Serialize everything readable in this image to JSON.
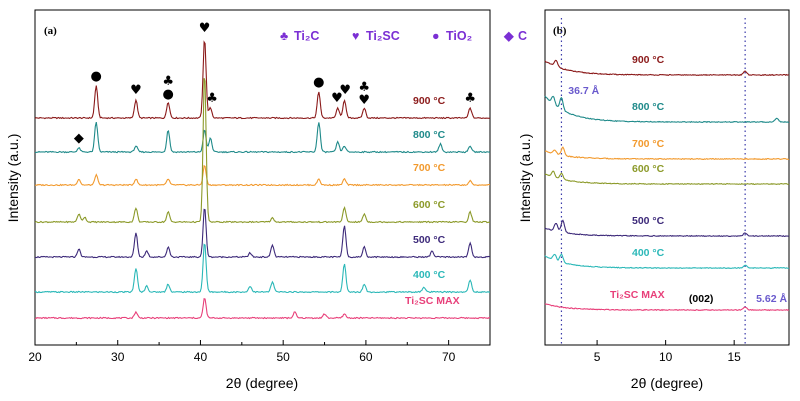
{
  "colors": {
    "900": "#8B1A1A",
    "800": "#1F8A8A",
    "700": "#F29A2E",
    "600": "#8C9A2A",
    "500": "#3D2A7A",
    "400": "#2BB8B8",
    "max": "#E8407A",
    "legend": "#7B2FD4",
    "annotation_b": "#6A5ACD",
    "dotted": "#3A3AAA"
  },
  "chart_data": [
    {
      "panel": "(a)",
      "type": "line",
      "xlabel": "2θ (degree)",
      "ylabel": "Intensity (a.u.)",
      "xlim": [
        20,
        75
      ],
      "xticks": [
        20,
        30,
        40,
        50,
        60,
        70
      ],
      "legend": [
        {
          "symbol": "♣",
          "label": "Ti₂C"
        },
        {
          "symbol": "♥",
          "label": "Ti₂SC"
        },
        {
          "symbol": "●",
          "label": "TiO₂"
        },
        {
          "symbol": "◆",
          "label": "C"
        }
      ],
      "series": [
        {
          "name": "900 °C",
          "color_key": "900",
          "peaks": [
            [
              27.4,
              32
            ],
            [
              32.2,
              18
            ],
            [
              36.1,
              16
            ],
            [
              40.5,
              80
            ],
            [
              41.2,
              10
            ],
            [
              54.3,
              26
            ],
            [
              56.6,
              10
            ],
            [
              57.4,
              18
            ],
            [
              59.8,
              10
            ],
            [
              72.6,
              10
            ]
          ]
        },
        {
          "name": "800 °C",
          "color_key": "800",
          "peaks": [
            [
              25.3,
              4
            ],
            [
              27.4,
              30
            ],
            [
              32.2,
              6
            ],
            [
              36.1,
              22
            ],
            [
              40.5,
              22
            ],
            [
              41.2,
              14
            ],
            [
              54.3,
              30
            ],
            [
              56.6,
              10
            ],
            [
              57.4,
              6
            ],
            [
              69.0,
              8
            ],
            [
              72.6,
              6
            ]
          ]
        },
        {
          "name": "700 °C",
          "color_key": "700",
          "peaks": [
            [
              25.3,
              6
            ],
            [
              27.4,
              10
            ],
            [
              32.2,
              6
            ],
            [
              36.1,
              6
            ],
            [
              40.5,
              20
            ],
            [
              54.3,
              6
            ],
            [
              57.4,
              6
            ],
            [
              72.6,
              4
            ]
          ]
        },
        {
          "name": "600 °C",
          "color_key": "600",
          "peaks": [
            [
              25.3,
              8
            ],
            [
              26.0,
              5
            ],
            [
              32.2,
              14
            ],
            [
              36.1,
              10
            ],
            [
              40.5,
              150
            ],
            [
              48.7,
              4
            ],
            [
              57.4,
              14
            ],
            [
              59.8,
              8
            ],
            [
              72.6,
              10
            ]
          ]
        },
        {
          "name": "500 °C",
          "color_key": "500",
          "peaks": [
            [
              25.3,
              8
            ],
            [
              32.2,
              24
            ],
            [
              33.5,
              6
            ],
            [
              36.1,
              10
            ],
            [
              40.5,
              50
            ],
            [
              46.0,
              4
            ],
            [
              48.7,
              12
            ],
            [
              57.4,
              32
            ],
            [
              59.8,
              10
            ],
            [
              68.0,
              6
            ],
            [
              72.6,
              14
            ]
          ]
        },
        {
          "name": "400 °C",
          "color_key": "400",
          "peaks": [
            [
              32.2,
              24
            ],
            [
              33.5,
              6
            ],
            [
              36.1,
              8
            ],
            [
              40.5,
              50
            ],
            [
              46.0,
              6
            ],
            [
              48.7,
              10
            ],
            [
              57.4,
              28
            ],
            [
              59.8,
              8
            ],
            [
              67.0,
              5
            ],
            [
              72.6,
              12
            ]
          ]
        },
        {
          "name": "Ti₂SC MAX",
          "color_key": "max",
          "peaks": [
            [
              32.2,
              6
            ],
            [
              40.5,
              20
            ],
            [
              51.4,
              6
            ],
            [
              55.0,
              4
            ],
            [
              57.4,
              4
            ]
          ]
        }
      ],
      "markers": [
        {
          "symbol": "●",
          "x": 27.4,
          "series": "900 °C"
        },
        {
          "symbol": "♥",
          "x": 32.2,
          "series": "900 °C"
        },
        {
          "symbol": "♣",
          "x": 36.1,
          "series": "900 °C"
        },
        {
          "symbol": "●",
          "x": 36.1,
          "series": "900 °C",
          "stack": 1
        },
        {
          "symbol": "♥",
          "x": 40.5,
          "series": "900 °C"
        },
        {
          "symbol": "♣",
          "x": 41.4,
          "series": "900 °C"
        },
        {
          "symbol": "●",
          "x": 54.3,
          "series": "900 °C"
        },
        {
          "symbol": "♥",
          "x": 56.5,
          "series": "900 °C"
        },
        {
          "symbol": "♥",
          "x": 57.5,
          "series": "900 °C"
        },
        {
          "symbol": "♣",
          "x": 59.8,
          "series": "900 °C"
        },
        {
          "symbol": "♥",
          "x": 59.8,
          "series": "900 °C",
          "stack": 1
        },
        {
          "symbol": "♣",
          "x": 72.6,
          "series": "900 °C"
        },
        {
          "symbol": "◆",
          "x": 25.3,
          "series": "800 °C"
        }
      ]
    },
    {
      "panel": "(b)",
      "type": "line",
      "xlabel": "2θ (degree)",
      "ylabel": "Intensity (a.u.)",
      "xlim": [
        1.2,
        19
      ],
      "xticks": [
        5,
        10,
        15
      ],
      "dotted_lines": [
        2.4,
        15.8
      ],
      "annotations": [
        {
          "text": "36.7 Å",
          "x": 2.9,
          "series": "800 °C"
        },
        {
          "text": "(002)",
          "x": 11.7,
          "series": "Ti₂SC MAX"
        },
        {
          "text": "5.62 Å",
          "x": 16.6,
          "series": "Ti₂SC MAX"
        }
      ],
      "series": [
        {
          "name": "900 °C",
          "color_key": "900",
          "start_rise": 14,
          "peaks": [
            [
              2.0,
              6
            ],
            [
              15.8,
              4
            ]
          ]
        },
        {
          "name": "800 °C",
          "color_key": "800",
          "start_rise": 26,
          "peaks": [
            [
              1.8,
              8
            ],
            [
              2.4,
              12
            ],
            [
              18.1,
              4
            ]
          ]
        },
        {
          "name": "700 °C",
          "color_key": "700",
          "start_rise": 8,
          "peaks": [
            [
              1.9,
              4
            ],
            [
              2.5,
              8
            ]
          ]
        },
        {
          "name": "600 °C",
          "color_key": "600",
          "start_rise": 10,
          "peaks": [
            [
              1.8,
              6
            ],
            [
              2.4,
              6
            ]
          ]
        },
        {
          "name": "500 °C",
          "color_key": "500",
          "start_rise": 8,
          "peaks": [
            [
              2.0,
              8
            ],
            [
              2.5,
              12
            ],
            [
              15.8,
              3
            ]
          ]
        },
        {
          "name": "400 °C",
          "color_key": "400",
          "start_rise": 12,
          "peaks": [
            [
              1.9,
              6
            ],
            [
              2.4,
              8
            ],
            [
              15.8,
              3
            ]
          ]
        },
        {
          "name": "Ti₂SC MAX",
          "color_key": "max",
          "start_rise": 6,
          "peaks": [
            [
              15.8,
              3
            ]
          ]
        }
      ]
    }
  ]
}
